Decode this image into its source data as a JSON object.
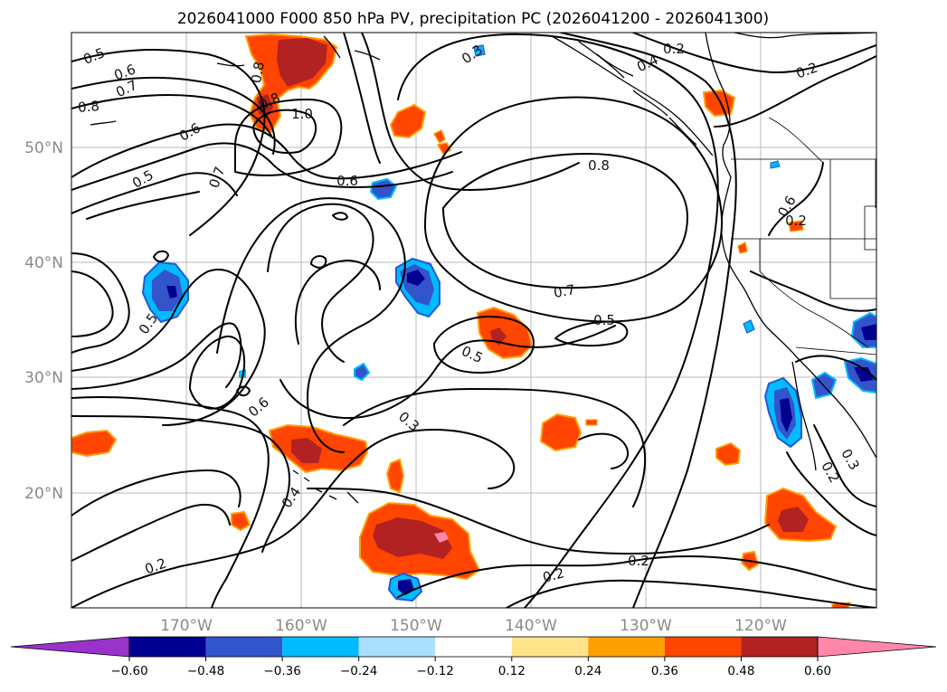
{
  "title": "2026041000 F000 850 hPa PV, precipitation PC (2026041200 - 2026041300)",
  "lon_labels": [
    "170°W",
    "160°W",
    "150°W",
    "140°W",
    "130°W",
    "120°W"
  ],
  "lat_labels": [
    "50°N",
    "40°N",
    "30°N",
    "20°N"
  ],
  "colorbar": {
    "ticks": [
      "−0.60",
      "−0.48",
      "−0.36",
      "−0.24",
      "−0.12",
      "0.12",
      "0.24",
      "0.36",
      "0.48",
      "0.60"
    ],
    "colors": [
      "#9933cc",
      "#000090",
      "#3355cc",
      "#00bbff",
      "#aadfff",
      "#ffffff",
      "#ffe38a",
      "#ffa000",
      "#ff4500",
      "#b22222",
      "#ff88aa"
    ]
  },
  "contour_labels": [
    "0.5",
    "0.6",
    "0.7",
    "0.8",
    "0.8",
    "0.8",
    "1.0",
    "0.6",
    "0.5",
    "0.7",
    "0.6",
    "0.3",
    "0.4",
    "0.2",
    "0.8",
    "0.6",
    "0.7",
    "0.5",
    "0.5",
    "0.5",
    "0.6",
    "0.3",
    "0.4",
    "0.2",
    "0.2",
    "0.2",
    "0.2",
    "0.3",
    "0.2",
    "0.2"
  ],
  "map": {
    "extent_lon": [
      -180,
      -110
    ],
    "extent_lat": [
      10,
      60
    ],
    "contour_field": "850 hPa PV",
    "fill_field": "precipitation PC"
  }
}
